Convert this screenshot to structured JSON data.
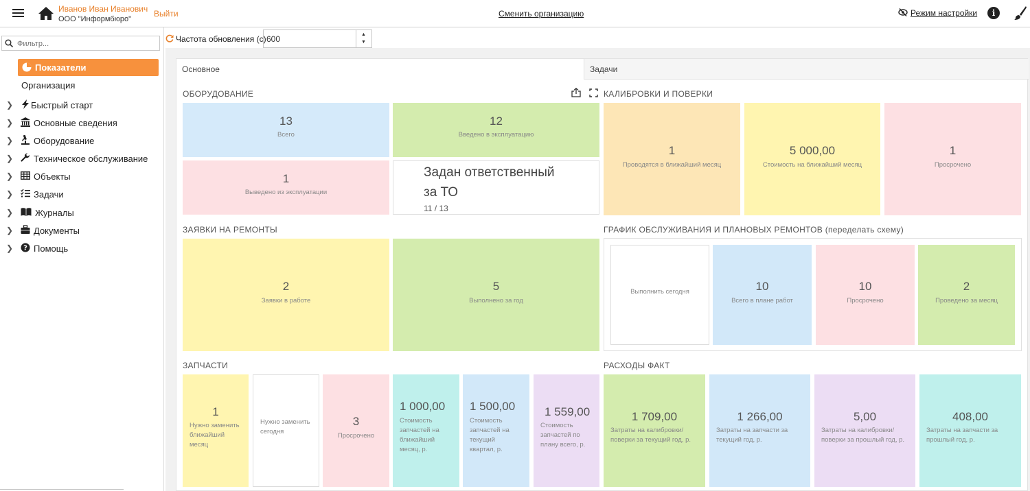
{
  "header": {
    "user_name": "Иванов Иван Иванович",
    "org_name": "ООО \"Информбюро\"",
    "logout_label": "Выйти",
    "change_org_label": "Сменить организацию",
    "settings_mode_label": "Режим настройки"
  },
  "sidebar": {
    "filter_placeholder": "Фильтр...",
    "active_item": "Показатели",
    "org_item": "Организация",
    "items": [
      {
        "label": "Быстрый старт",
        "icon": "bolt-icon"
      },
      {
        "label": "Основные сведения",
        "icon": "bank-icon"
      },
      {
        "label": "Оборудование",
        "icon": "microscope-icon"
      },
      {
        "label": "Техническое обслуживание",
        "icon": "wrench-icon"
      },
      {
        "label": "Объекты",
        "icon": "table-icon"
      },
      {
        "label": "Задачи",
        "icon": "tasks-icon"
      },
      {
        "label": "Журналы",
        "icon": "book-icon"
      },
      {
        "label": "Документы",
        "icon": "briefcase-icon"
      },
      {
        "label": "Помощь",
        "icon": "question-icon"
      }
    ]
  },
  "refresh": {
    "label": "Частота обновления (с)",
    "value": "600"
  },
  "tabs": {
    "main": "Основное",
    "tasks": "Задачи"
  },
  "equipment": {
    "title": "ОБОРУДОВАНИЕ",
    "total": {
      "value": "13",
      "caption": "Всего"
    },
    "in_service": {
      "value": "12",
      "caption": "Введено в эксплуатацию"
    },
    "decommissioned": {
      "value": "1",
      "caption": "Выведено из эксплуатации"
    },
    "responsible": {
      "title_line1": "Задан ответственный",
      "title_line2": "за ТО",
      "ratio": "11 / 13"
    }
  },
  "calibration": {
    "title": "КАЛИБРОВКИ И ПОВЕРКИ",
    "next_month": {
      "value": "1",
      "caption": "Проводятся в ближайший месяц"
    },
    "cost": {
      "value": "5 000,00",
      "caption": "Стоимость на ближайший месяц"
    },
    "overdue": {
      "value": "1",
      "caption": "Просрочено"
    }
  },
  "repairs": {
    "title": "ЗАЯВКИ НА РЕМОНТЫ",
    "in_work": {
      "value": "2",
      "caption": "Заявки в работе"
    },
    "done": {
      "value": "5",
      "caption": "Выполнено за год"
    }
  },
  "schedule": {
    "title": "ГРАФИК ОБСЛУЖИВАНИЯ И ПЛАНОВЫХ РЕМОНТОВ (переделать схему)",
    "today": {
      "caption": "Выполнить сегодня"
    },
    "plan_total": {
      "value": "10",
      "caption": "Всего в плане работ"
    },
    "overdue": {
      "value": "10",
      "caption": "Просрочено"
    },
    "month_done": {
      "value": "2",
      "caption": "Проведено за месяц"
    }
  },
  "parts": {
    "title": "ЗАПЧАСТИ",
    "replace_month": {
      "value": "1",
      "caption_l1": "Нужно заменить",
      "caption_l2": "ближайший",
      "caption_l3": "месяц"
    },
    "replace_today": {
      "caption_l1": "Нужно заменить",
      "caption_l2": "сегодня"
    },
    "overdue": {
      "value": "3",
      "caption": "Просрочено"
    },
    "cost_month": {
      "value": "1 000,00",
      "caption_l1": "Стоимость",
      "caption_l2": "запчастей на",
      "caption_l3": "ближайший",
      "caption_l4": "месяц, р."
    },
    "cost_quarter": {
      "value": "1 500,00",
      "caption_l1": "Стоимость",
      "caption_l2": "запчастей на",
      "caption_l3": "текущий",
      "caption_l4": "квартал, р."
    },
    "cost_plan": {
      "value": "1 559,00",
      "caption_l1": "Стоимость",
      "caption_l2": "запчастей по",
      "caption_l3": "плану всего, р."
    }
  },
  "expenses": {
    "title": "РАСХОДЫ ФАКТ",
    "calib_cur": {
      "value": "1 709,00",
      "caption_l1": "Затраты на калибровки/",
      "caption_l2": "поверки за текущий год, р."
    },
    "parts_cur": {
      "value": "1 266,00",
      "caption_l1": "Затраты на запчасти за",
      "caption_l2": "текущий год, р."
    },
    "calib_prev": {
      "value": "5,00",
      "caption_l1": "Затраты на калибровки/",
      "caption_l2": "поверки за прошлый год, р."
    },
    "parts_prev": {
      "value": "408,00",
      "caption_l1": "Затраты на запчасти за",
      "caption_l2": "прошлый год, р."
    }
  },
  "colors": {
    "accent": "#f7913d",
    "blue": "#d5eafa",
    "green": "#d4ecae",
    "pink": "#fde0e3",
    "yellow": "#fff5b0",
    "orange": "#fde6b6",
    "cyan": "#bff0ec",
    "purple": "#ecddf4"
  }
}
